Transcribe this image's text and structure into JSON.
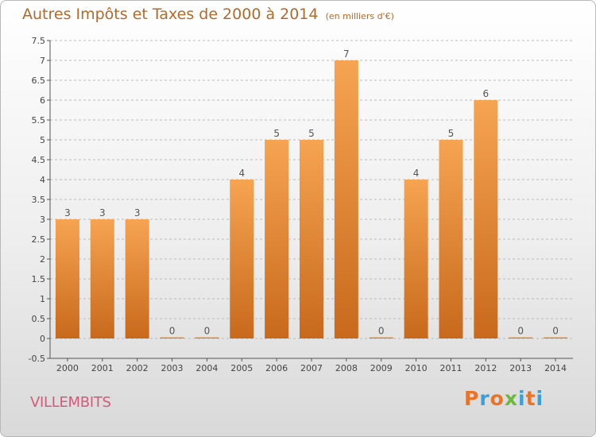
{
  "header": {
    "title": "Autres Impôts et Taxes de 2000 à 2014",
    "unit": "(en milliers d'€)"
  },
  "footer": {
    "city": "VILLEMBITS",
    "brand": "Proxiti",
    "brand_colors": [
      "#e8742a",
      "#3aa0d8",
      "#e8742a",
      "#6cba3c",
      "#3aa0d8",
      "#e8742a",
      "#3aa0d8"
    ]
  },
  "chart_data": {
    "type": "bar",
    "categories": [
      "2000",
      "2001",
      "2002",
      "2003",
      "2004",
      "2005",
      "2006",
      "2007",
      "2008",
      "2009",
      "2010",
      "2011",
      "2012",
      "2013",
      "2014"
    ],
    "values": [
      3,
      3,
      3,
      0,
      0,
      4,
      5,
      5,
      7,
      0,
      4,
      5,
      6,
      0,
      0
    ],
    "data_labels": [
      "3",
      "3",
      "3",
      "0",
      "0",
      "4",
      "5",
      "5",
      "7",
      "0",
      "4",
      "5",
      "6",
      "0",
      "0"
    ],
    "ylim": [
      -0.5,
      7.5
    ],
    "yticks": [
      "-0.5",
      "0",
      "0.5",
      "1",
      "1.5",
      "2",
      "2.5",
      "3",
      "3.5",
      "4",
      "4.5",
      "5",
      "5.5",
      "6",
      "6.5",
      "7",
      "7.5"
    ],
    "grid": true,
    "bar_color_top": "#f6a452",
    "bar_color_bottom": "#c8691c",
    "grid_color": "#bbbbbb"
  }
}
